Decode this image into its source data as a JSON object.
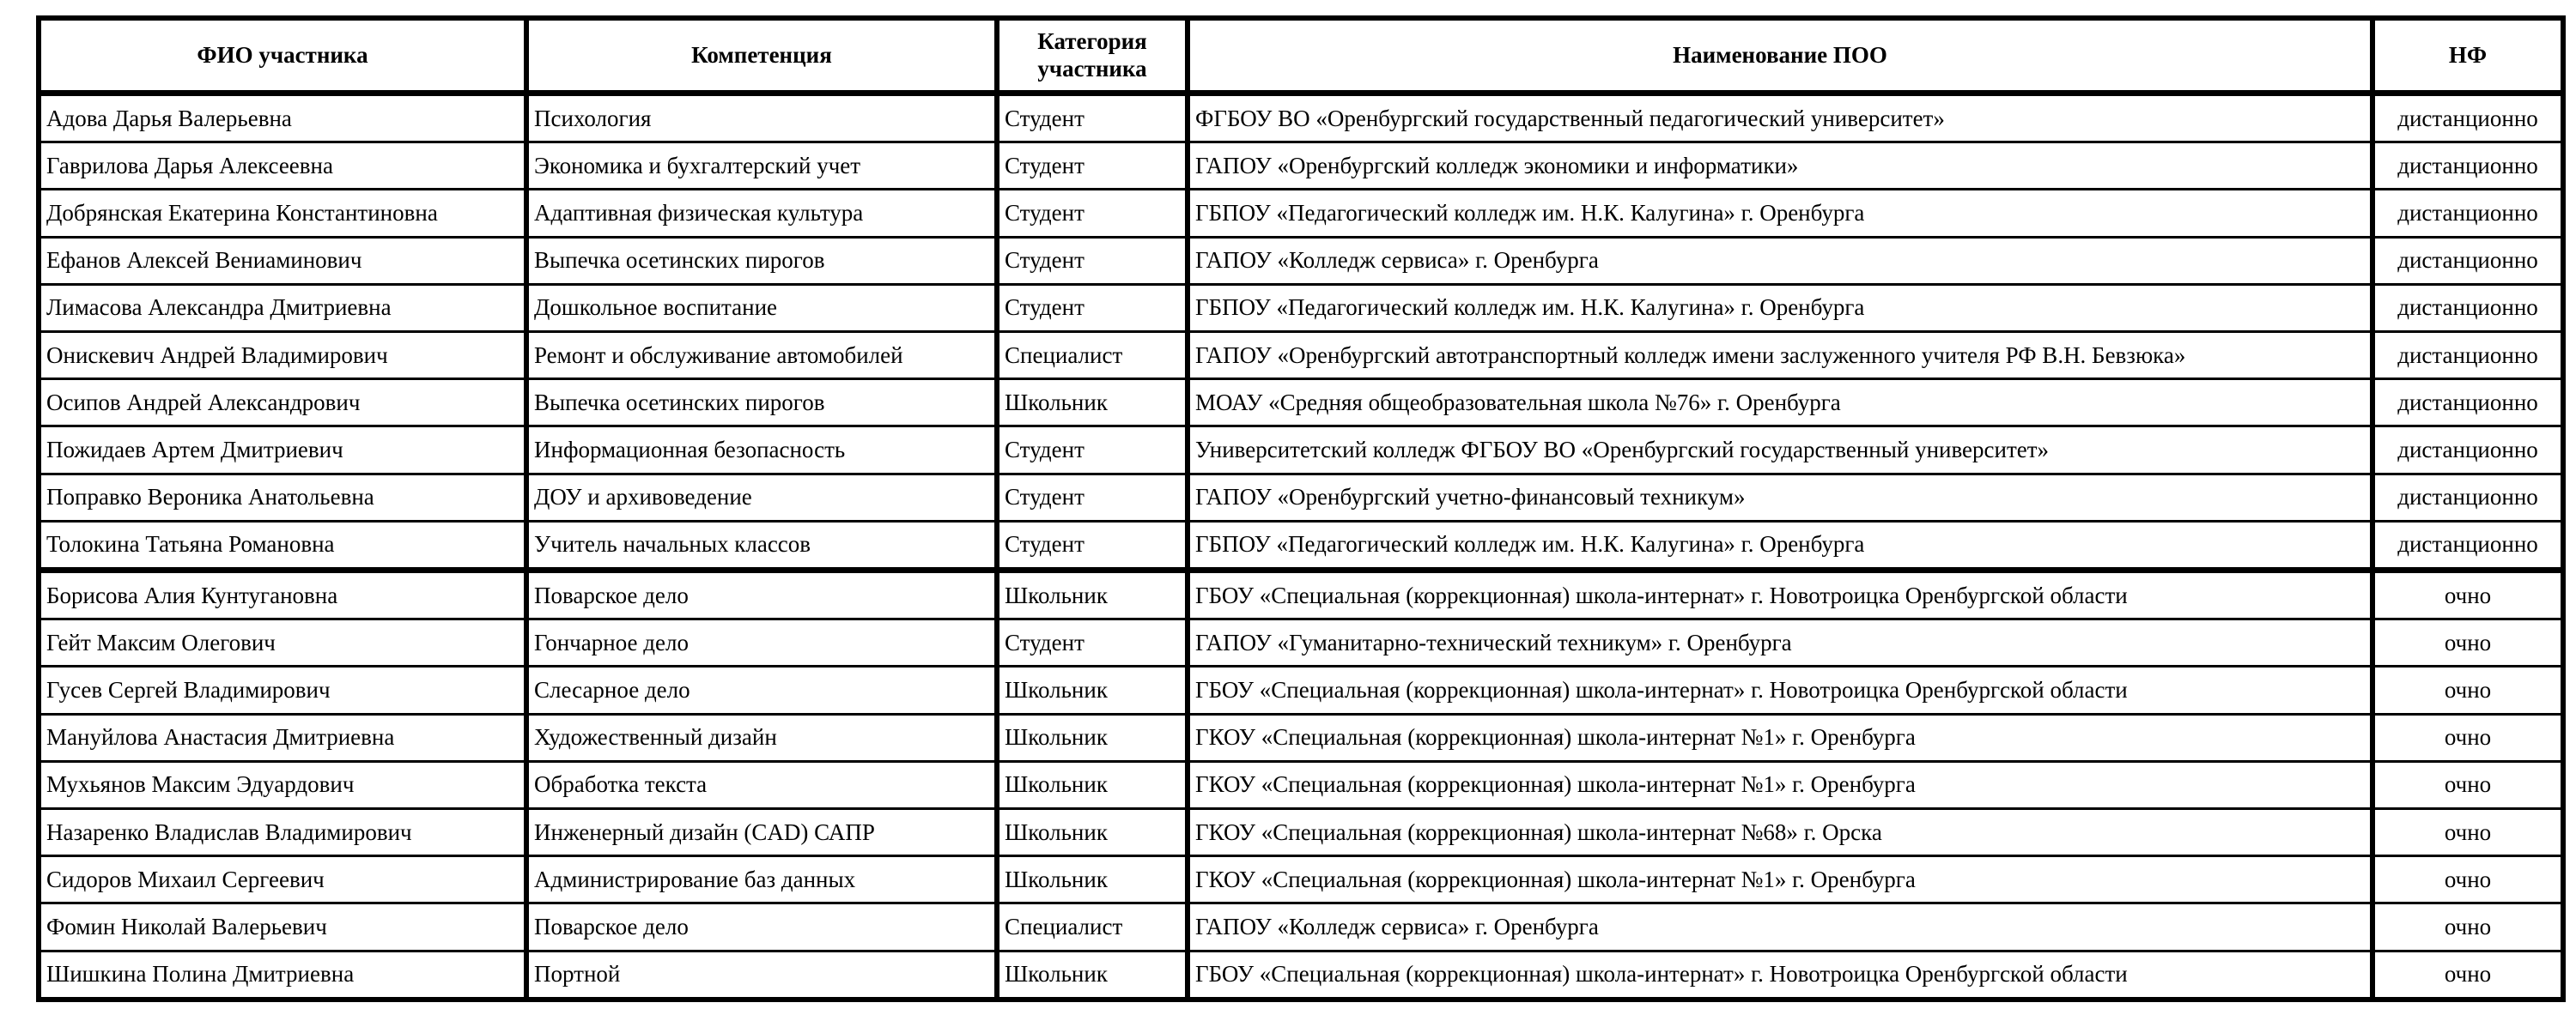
{
  "table": {
    "headers": {
      "name": "ФИО участника",
      "competence": "Компетенция",
      "category": "Категория участника",
      "organization": "Наименование ПОО",
      "form": "НФ"
    },
    "rows": [
      {
        "name": "Адова Дарья Валерьевна",
        "competence": "Психология",
        "category": "Студент",
        "organization": "ФГБОУ ВО «Оренбургский государственный педагогический университет»",
        "form": "дистанционно"
      },
      {
        "name": "Гаврилова Дарья Алексеевна",
        "competence": "Экономика и бухгалтерский учет",
        "category": "Студент",
        "organization": "ГАПОУ «Оренбургский колледж экономики и информатики»",
        "form": "дистанционно"
      },
      {
        "name": "Добрянская Екатерина Константиновна",
        "competence": "Адаптивная физическая культура",
        "category": "Студент",
        "organization": "ГБПОУ «Педагогический колледж им. Н.К. Калугина» г. Оренбурга",
        "form": "дистанционно"
      },
      {
        "name": "Ефанов Алексей Вениаминович",
        "competence": "Выпечка осетинских пирогов",
        "category": "Студент",
        "organization": "ГАПОУ «Колледж сервиса» г. Оренбурга",
        "form": "дистанционно"
      },
      {
        "name": "Лимасова Александра Дмитриевна",
        "competence": "Дошкольное воспитание",
        "category": "Студент",
        "organization": "ГБПОУ «Педагогический колледж им. Н.К. Калугина» г. Оренбурга",
        "form": "дистанционно"
      },
      {
        "name": "Онискевич Андрей Владимирович",
        "competence": "Ремонт и обслуживание автомобилей",
        "category": "Специалист",
        "organization": "ГАПОУ «Оренбургский автотранспортный колледж имени заслуженного учителя РФ В.Н. Бевзюка»",
        "form": "дистанционно"
      },
      {
        "name": "Осипов Андрей Александрович",
        "competence": "Выпечка осетинских пирогов",
        "category": "Школьник",
        "organization": "МОАУ «Средняя общеобразовательная школа №76» г. Оренбурга",
        "form": "дистанционно"
      },
      {
        "name": "Пожидаев Артем Дмитриевич",
        "competence": "Информационная безопасность",
        "category": "Студент",
        "organization": "Университетский колледж ФГБОУ ВО «Оренбургский государственный университет»",
        "form": "дистанционно"
      },
      {
        "name": "Поправко Вероника Анатольевна",
        "competence": "ДОУ и архивоведение",
        "category": "Студент",
        "organization": "ГАПОУ «Оренбургский учетно-финансовый техникум»",
        "form": "дистанционно"
      },
      {
        "name": "Толокина Татьяна Романовна",
        "competence": "Учитель начальных классов",
        "category": "Студент",
        "organization": "ГБПОУ «Педагогический колледж им. Н.К. Калугина» г. Оренбурга",
        "form": "дистанционно"
      },
      {
        "name": "Борисова Алия Кунтугановна",
        "competence": "Поварское дело",
        "category": "Школьник",
        "organization": "ГБОУ «Специальная (коррекционная) школа-интернат» г. Новотроицка Оренбургской области",
        "form": "очно"
      },
      {
        "name": "Гейт Максим Олегович",
        "competence": "Гончарное дело",
        "category": "Студент",
        "organization": "ГАПОУ «Гуманитарно-технический техникум» г. Оренбурга",
        "form": "очно"
      },
      {
        "name": "Гусев Сергей Владимирович",
        "competence": "Слесарное дело",
        "category": "Школьник",
        "organization": "ГБОУ «Специальная (коррекционная) школа-интернат» г. Новотроицка Оренбургской области",
        "form": "очно"
      },
      {
        "name": "Мануйлова Анастасия Дмитриевна",
        "competence": "Художественный дизайн",
        "category": "Школьник",
        "organization": "ГКОУ «Специальная (коррекционная) школа-интернат №1» г. Оренбурга",
        "form": "очно"
      },
      {
        "name": "Мухьянов Максим Эдуардович",
        "competence": "Обработка текста",
        "category": "Школьник",
        "organization": "ГКОУ «Специальная (коррекционная) школа-интернат №1» г. Оренбурга",
        "form": "очно"
      },
      {
        "name": "Назаренко Владислав Владимирович",
        "competence": "Инженерный дизайн (CAD) САПР",
        "category": "Школьник",
        "organization": "ГКОУ «Специальная (коррекционная) школа-интернат №68» г. Орска",
        "form": "очно"
      },
      {
        "name": "Сидоров Михаил Сергеевич",
        "competence": "Администрирование баз данных",
        "category": "Школьник",
        "organization": "ГКОУ «Специальная (коррекционная) школа-интернат №1» г. Оренбурга",
        "form": "очно"
      },
      {
        "name": "Фомин Николай Валерьевич",
        "competence": "Поварское дело",
        "category": "Специалист",
        "organization": "ГАПОУ «Колледж сервиса» г. Оренбурга",
        "form": "очно"
      },
      {
        "name": "Шишкина Полина Дмитриевна",
        "competence": "Портной",
        "category": "Школьник",
        "organization": "ГБОУ «Специальная (коррекционная) школа-интернат» г. Новотроицка Оренбургской области",
        "form": "очно"
      }
    ]
  }
}
